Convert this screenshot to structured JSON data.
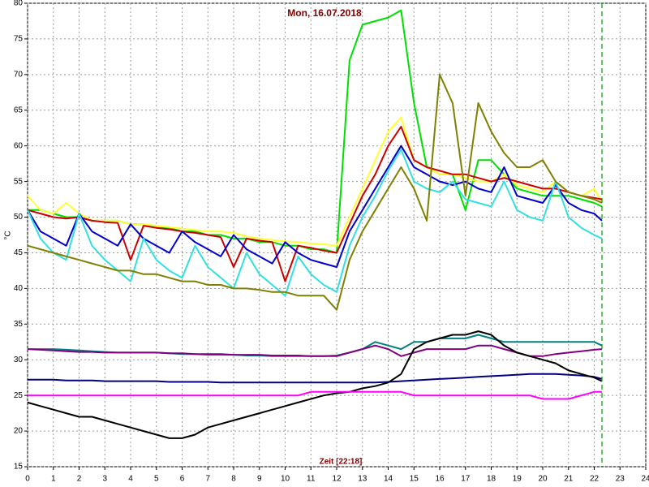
{
  "chart_data": {
    "type": "line",
    "title": "Mon, 16.07.2018",
    "x_label": "Zeit [22:18]",
    "y_label": "°C",
    "xlim": [
      0,
      24
    ],
    "xticks": [
      0,
      1,
      2,
      3,
      4,
      5,
      6,
      7,
      8,
      9,
      10,
      11,
      12,
      13,
      14,
      15,
      16,
      17,
      18,
      19,
      20,
      21,
      22,
      23,
      24
    ],
    "ylim": [
      15,
      80
    ],
    "yticks": [
      15,
      20,
      25,
      30,
      35,
      40,
      45,
      50,
      55,
      60,
      65,
      70,
      75,
      80
    ],
    "grid": true,
    "now_x": 22.3,
    "now_color": "#009900",
    "x": [
      0,
      0.5,
      1,
      1.5,
      2,
      2.5,
      3,
      3.5,
      4,
      4.5,
      5,
      5.5,
      6,
      6.5,
      7,
      7.5,
      8,
      8.5,
      9,
      9.5,
      10,
      10.5,
      11,
      11.5,
      12,
      12.5,
      13,
      13.5,
      14,
      14.5,
      15,
      15.5,
      16,
      16.5,
      17,
      17.5,
      18,
      18.5,
      19,
      19.5,
      20,
      20.5,
      21,
      21.5,
      22,
      22.3
    ],
    "series": [
      {
        "color": "#00e000",
        "values": [
          51,
          51,
          50.5,
          50,
          50,
          49.5,
          49.5,
          49.5,
          49,
          49,
          48.5,
          48.5,
          48,
          48,
          47.5,
          47.5,
          47,
          47,
          46.5,
          46.5,
          46,
          46,
          45.5,
          45.5,
          45,
          72,
          77,
          77.5,
          78,
          79,
          66,
          57,
          56,
          56,
          51,
          58,
          58,
          56,
          54,
          53.5,
          53,
          53,
          53,
          52.5,
          52,
          51.5
        ]
      },
      {
        "color": "#ffff33",
        "values": [
          53,
          51,
          50.5,
          52,
          50.5,
          49.5,
          49.5,
          49.5,
          49,
          49,
          48.8,
          48.6,
          48.4,
          48.2,
          48,
          48,
          47.8,
          47.3,
          47,
          46.8,
          46.6,
          46.5,
          46.3,
          46.2,
          46,
          50,
          54,
          58,
          62,
          64,
          58,
          57,
          56,
          56,
          55.5,
          55,
          55,
          56,
          54.5,
          54,
          53.5,
          55,
          53.5,
          53,
          54,
          52
        ]
      },
      {
        "color": "#cc0000",
        "values": [
          51,
          50.5,
          50,
          49.8,
          50,
          49.5,
          49.3,
          49.2,
          44,
          48.8,
          48.5,
          48.3,
          48,
          47.8,
          47.5,
          47.2,
          43,
          47,
          46.7,
          46.5,
          41,
          46,
          45.7,
          45.3,
          45,
          49,
          53,
          56,
          60,
          62.7,
          58,
          57,
          56.5,
          56,
          56,
          55.5,
          55,
          55.5,
          55,
          54.5,
          54,
          54,
          53.5,
          53,
          52.7,
          52.5
        ]
      },
      {
        "color": "#0000cc",
        "values": [
          51,
          48,
          47,
          46,
          50.5,
          48,
          47,
          46,
          49,
          47,
          46,
          45,
          48,
          46.5,
          45.5,
          44.5,
          47.5,
          45.5,
          44.5,
          43.5,
          46.5,
          45,
          44,
          43.5,
          43,
          48,
          51,
          54,
          57,
          60,
          57,
          56,
          55,
          54.5,
          55,
          54,
          53.5,
          57,
          53,
          52.5,
          52,
          54.5,
          52,
          51,
          50.5,
          49.5
        ]
      },
      {
        "color": "#33e0e0",
        "values": [
          51,
          47,
          45,
          44,
          50.5,
          46,
          44,
          42.5,
          41,
          47,
          44,
          42.5,
          41.5,
          46,
          43,
          41.5,
          40,
          45,
          42,
          40.5,
          39,
          44.5,
          42,
          40.5,
          39.5,
          46,
          50,
          53,
          56.5,
          59.5,
          55,
          54,
          53.5,
          55,
          52.5,
          52,
          51.5,
          55,
          51,
          50,
          49.5,
          55,
          50,
          48.5,
          47.5,
          47
        ]
      },
      {
        "color": "#808000",
        "values": [
          46,
          45.5,
          45,
          44.5,
          44,
          43.5,
          43,
          42.5,
          42.5,
          42,
          42,
          41.5,
          41,
          41,
          40.5,
          40.5,
          40,
          40,
          39.8,
          39.5,
          39.5,
          39,
          39,
          39,
          37,
          44,
          48,
          51,
          54,
          57,
          54,
          49.5,
          70,
          66,
          53,
          66,
          62,
          59,
          57,
          57,
          58,
          55,
          53.5,
          53,
          52.5,
          52
        ]
      },
      {
        "color": "#008080",
        "values": [
          31.5,
          31.5,
          31.5,
          31.4,
          31.3,
          31.2,
          31.1,
          31,
          31,
          31,
          31,
          30.9,
          30.8,
          30.8,
          30.7,
          30.7,
          30.7,
          30.6,
          30.6,
          30.5,
          30.5,
          30.5,
          30.5,
          30.5,
          30.6,
          31,
          31.5,
          32.5,
          32,
          31.5,
          32.5,
          32.5,
          33,
          33,
          33,
          33.5,
          33,
          32.5,
          32.5,
          32.5,
          32.5,
          32.5,
          32.5,
          32.5,
          32.5,
          32
        ]
      },
      {
        "color": "#800080",
        "values": [
          31.5,
          31.4,
          31.3,
          31.2,
          31.1,
          31.1,
          31,
          31,
          31,
          31,
          31,
          30.9,
          30.9,
          30.8,
          30.8,
          30.8,
          30.7,
          30.7,
          30.7,
          30.6,
          30.6,
          30.6,
          30.5,
          30.5,
          30.5,
          31,
          31.5,
          32,
          31.5,
          30.5,
          31,
          31.5,
          31.5,
          31.5,
          31.5,
          32,
          32,
          31.5,
          31,
          30.5,
          30.5,
          30.8,
          31,
          31.2,
          31.4,
          31.5
        ]
      },
      {
        "color": "#000080",
        "values": [
          27.2,
          27.2,
          27.2,
          27.1,
          27.1,
          27.1,
          27,
          27,
          27,
          27,
          27,
          26.9,
          26.9,
          26.9,
          26.9,
          26.8,
          26.8,
          26.8,
          26.8,
          26.8,
          26.8,
          26.8,
          26.8,
          26.8,
          26.8,
          26.8,
          26.8,
          26.8,
          26.9,
          27,
          27.1,
          27.2,
          27.3,
          27.4,
          27.5,
          27.6,
          27.7,
          27.8,
          27.9,
          28,
          28,
          28,
          27.9,
          27.8,
          27.6,
          27.3
        ]
      },
      {
        "color": "#000000",
        "values": [
          24,
          23.5,
          23,
          22.5,
          22,
          22,
          21.5,
          21,
          20.5,
          20,
          19.5,
          19,
          19,
          19.5,
          20.5,
          21,
          21.5,
          22,
          22.5,
          23,
          23.5,
          24,
          24.5,
          25,
          25.3,
          25.5,
          26,
          26.3,
          26.8,
          28,
          31.5,
          32.5,
          33,
          33.5,
          33.5,
          34,
          33.5,
          32,
          31,
          30.5,
          30,
          29.5,
          28.5,
          28,
          27.5,
          27
        ]
      },
      {
        "color": "#ff00ff",
        "values": [
          25,
          25,
          25,
          25,
          25,
          25,
          25,
          25,
          25,
          25,
          25,
          25,
          25,
          25,
          25,
          25,
          25,
          25,
          25,
          25,
          25,
          25,
          25.5,
          25.5,
          25.5,
          25.5,
          25.5,
          25.5,
          25.5,
          25.5,
          25,
          25,
          25,
          25,
          25,
          25,
          25,
          25,
          25,
          25,
          24.5,
          24.5,
          24.5,
          25,
          25.5,
          25.5
        ]
      }
    ]
  }
}
